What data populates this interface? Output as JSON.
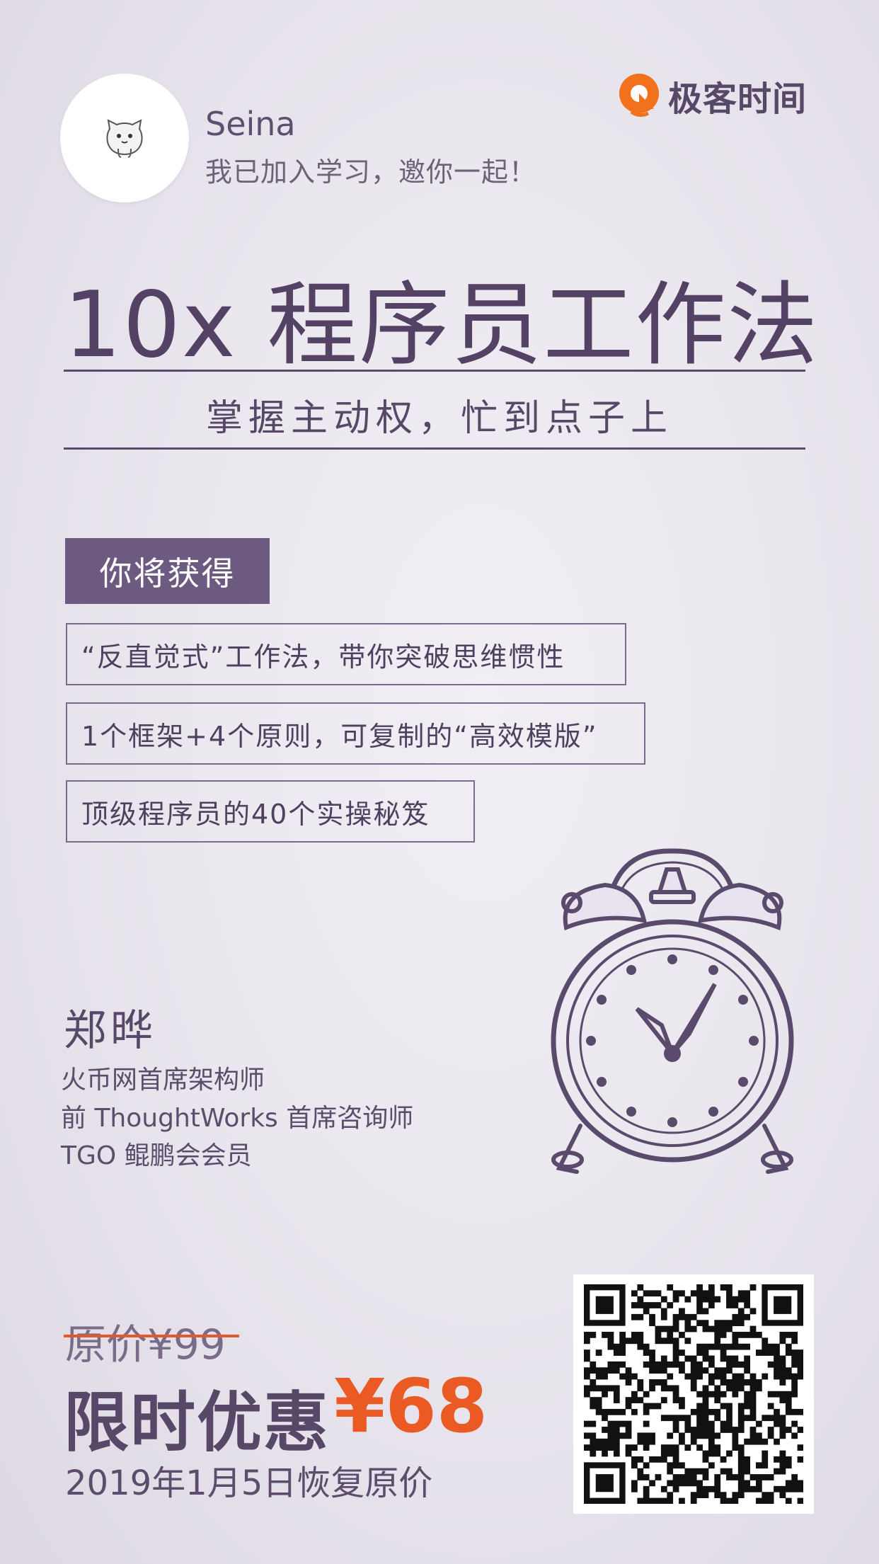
{
  "header": {
    "user_name": "Seina",
    "invite_text": "我已加入学习，邀你一起！",
    "avatar_icon": "cat-avatar-icon",
    "brand_name": "极客时间",
    "brand_icon": "geektime-logo-icon"
  },
  "course": {
    "title": "10x 程序员工作法",
    "subtitle": "掌握主动权，忙到点子上"
  },
  "benefits": {
    "label": "你将获得",
    "items": [
      "“反直觉式”工作法，带你突破思维惯性",
      "1个框架+4个原则，可复制的“高效模版”",
      "顶级程序员的40个实操秘笈"
    ]
  },
  "author": {
    "name": "郑晔",
    "titles": [
      "火币网首席架构师",
      "前 ThoughtWorks 首席咨询师",
      "TGO 鲲鹏会会员"
    ]
  },
  "price": {
    "original": "原价¥99",
    "promo_label": "限时优惠",
    "promo_price": "¥68",
    "restore_note": "2019年1月5日恢复原价"
  },
  "colors": {
    "primary": "#574868",
    "accent": "#ec5a24",
    "label_bg": "#6c5a80",
    "brand_orange": "#f2711c"
  },
  "decorations": {
    "clock_icon": "alarm-clock-icon",
    "qr_icon": "qr-code-icon"
  }
}
